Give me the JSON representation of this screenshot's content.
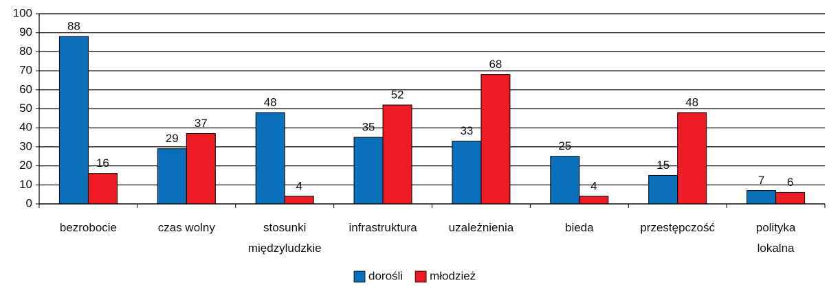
{
  "chart_data": {
    "type": "bar",
    "categories": [
      "bezrobocie",
      "czas wolny",
      "stosunki międzyludzkie",
      "infrastruktura",
      "uzależnienia",
      "bieda",
      "przestępczość",
      "polityka lokalna"
    ],
    "series": [
      {
        "name": "dorośli",
        "color": "#0a70bc",
        "values": [
          88,
          29,
          48,
          35,
          33,
          25,
          15,
          7
        ]
      },
      {
        "name": "młodzież",
        "color": "#ed1c24",
        "values": [
          16,
          37,
          4,
          52,
          68,
          4,
          48,
          6
        ]
      }
    ],
    "ylim": [
      0,
      100
    ],
    "yticks": [
      0,
      10,
      20,
      30,
      40,
      50,
      60,
      70,
      80,
      90,
      100
    ],
    "grid": true,
    "legend": "bottom"
  }
}
